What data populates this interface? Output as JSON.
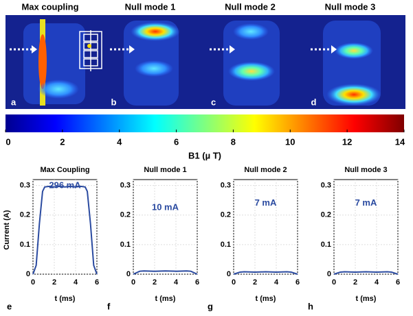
{
  "figure": {
    "panels": [
      {
        "title": "Max coupling",
        "letter": "a"
      },
      {
        "title": "Null mode 1",
        "letter": "b"
      },
      {
        "title": "Null mode 2",
        "letter": "c"
      },
      {
        "title": "Null mode 3",
        "letter": "d"
      }
    ],
    "colorbar": {
      "clim": [
        0,
        14
      ],
      "ticks": [
        0,
        2,
        4,
        6,
        8,
        10,
        12,
        14
      ],
      "label": "B1 (µ T)"
    }
  },
  "chart_data": [
    {
      "type": "line",
      "title": "Max Coupling",
      "label": "e",
      "ylabel": "Current (A)",
      "xlabel": "t (ms)",
      "annotation": "296 mA",
      "color": "#2a4aa0",
      "x": [
        0,
        0.3,
        0.6,
        0.9,
        1.1,
        1.5,
        2,
        2.5,
        3,
        3.5,
        4,
        4.5,
        4.9,
        5.1,
        5.4,
        5.7,
        6
      ],
      "values": [
        0,
        0.03,
        0.17,
        0.28,
        0.295,
        0.297,
        0.295,
        0.297,
        0.295,
        0.297,
        0.295,
        0.297,
        0.295,
        0.28,
        0.17,
        0.03,
        0
      ],
      "xlim": [
        0,
        6
      ],
      "ylim": [
        0,
        0.32
      ],
      "xticks": [
        0,
        2,
        4,
        6
      ],
      "yticks": [
        0,
        0.1,
        0.2,
        0.3
      ],
      "grid": true
    },
    {
      "type": "line",
      "title": "Null mode 1",
      "label": "f",
      "xlabel": "t (ms)",
      "annotation": "10 mA",
      "color": "#2a4aa0",
      "x": [
        0,
        0.6,
        1,
        2,
        3,
        4,
        5,
        5.4,
        6
      ],
      "values": [
        0,
        0.01,
        0.011,
        0.01,
        0.011,
        0.01,
        0.011,
        0.01,
        0
      ],
      "xlim": [
        0,
        6
      ],
      "ylim": [
        0,
        0.32
      ],
      "xticks": [
        0,
        2,
        4,
        6
      ],
      "yticks": [
        0,
        0.1,
        0.2,
        0.3
      ],
      "grid": true
    },
    {
      "type": "line",
      "title": "Null mode 2",
      "label": "g",
      "xlabel": "t (ms)",
      "annotation": "7 mA",
      "color": "#2a4aa0",
      "x": [
        0,
        0.6,
        1,
        2,
        3,
        4,
        5,
        5.4,
        6
      ],
      "values": [
        0,
        0.007,
        0.008,
        0.007,
        0.008,
        0.007,
        0.008,
        0.007,
        0
      ],
      "xlim": [
        0,
        6
      ],
      "ylim": [
        0,
        0.32
      ],
      "xticks": [
        0,
        2,
        4,
        6
      ],
      "yticks": [
        0,
        0.1,
        0.2,
        0.3
      ],
      "grid": true
    },
    {
      "type": "line",
      "title": "Null mode 3",
      "label": "h",
      "xlabel": "t (ms)",
      "annotation": "7 mA",
      "color": "#2a4aa0",
      "x": [
        0,
        0.6,
        1,
        2,
        3,
        4,
        5,
        5.4,
        6
      ],
      "values": [
        0,
        0.007,
        0.008,
        0.007,
        0.008,
        0.007,
        0.008,
        0.007,
        0
      ],
      "xlim": [
        0,
        6
      ],
      "ylim": [
        0,
        0.32
      ],
      "xticks": [
        0,
        2,
        4,
        6
      ],
      "yticks": [
        0,
        0.1,
        0.2,
        0.3
      ],
      "grid": true
    }
  ]
}
